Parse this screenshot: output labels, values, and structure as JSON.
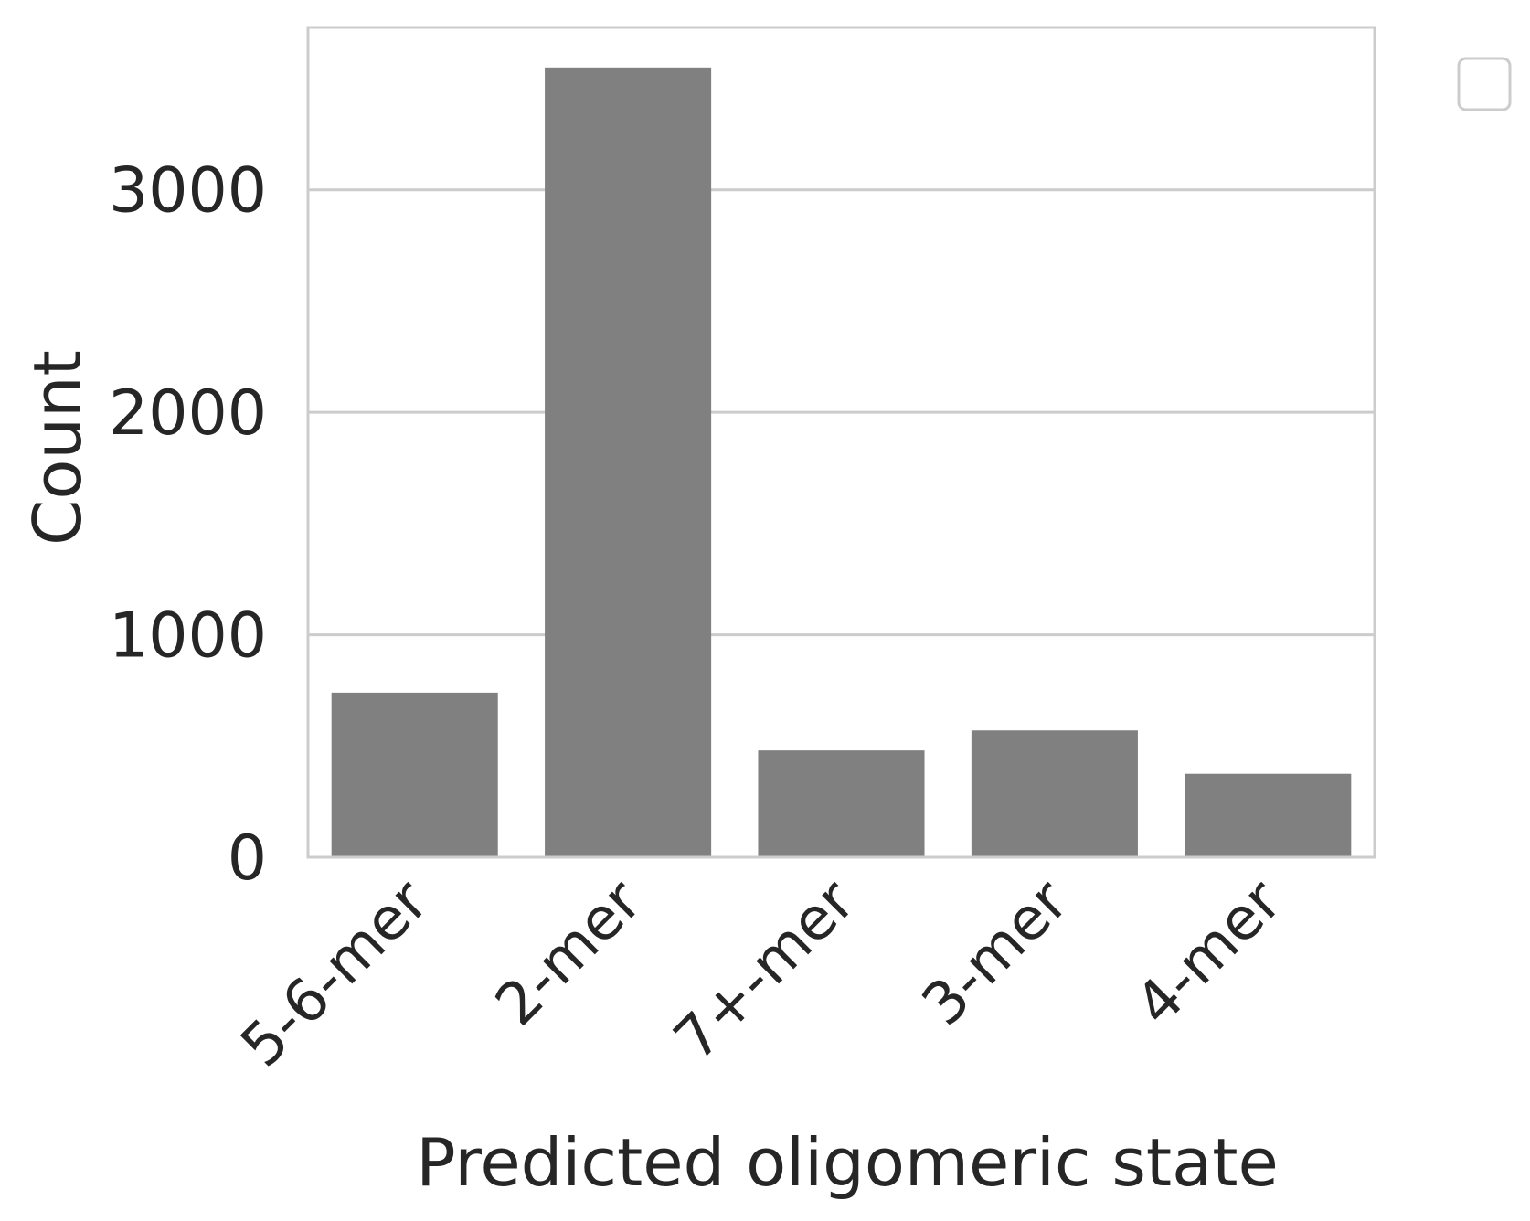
{
  "chart_data": {
    "type": "bar",
    "title": "",
    "xlabel": "Predicted oligomeric state",
    "ylabel": "Count",
    "categories": [
      "5-6-mer",
      "2-mer",
      "7+-mer",
      "3-mer",
      "4-mer"
    ],
    "values": [
      740,
      3550,
      480,
      570,
      375
    ],
    "ylim": [
      0,
      3730
    ],
    "yticks": [
      0,
      1000,
      2000,
      3000
    ],
    "ytick_labels": [
      "0",
      "1000",
      "2000",
      "3000"
    ],
    "grid": "y",
    "legend": "outside-top-right",
    "colors": {
      "bar": "#808080",
      "grid": "#cccccc",
      "frame": "#cccccc",
      "text": "#262626"
    }
  }
}
